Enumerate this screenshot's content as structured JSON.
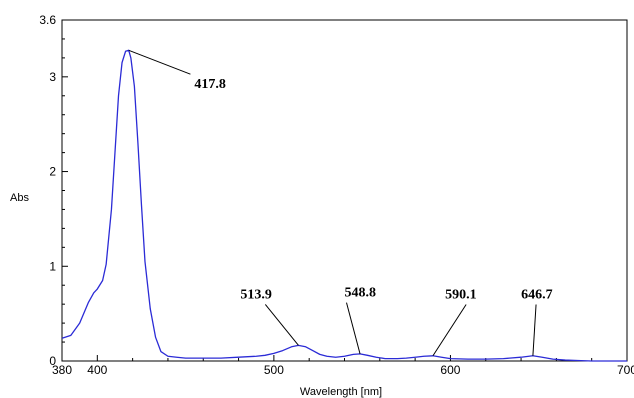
{
  "chart_data": {
    "type": "line",
    "title": "",
    "xlabel": "Wavelength [nm]",
    "ylabel": "Abs",
    "xlim": [
      380,
      700
    ],
    "ylim": [
      0,
      3.6
    ],
    "xticks": [
      {
        "value": 380,
        "label": "380"
      },
      {
        "value": 400,
        "label": "400"
      },
      {
        "value": 500,
        "label": "500"
      },
      {
        "value": 600,
        "label": "600"
      },
      {
        "value": 700,
        "label": "700"
      }
    ],
    "yticks": [
      {
        "value": 0,
        "label": "0"
      },
      {
        "value": 1,
        "label": "1"
      },
      {
        "value": 2,
        "label": "2"
      },
      {
        "value": 3,
        "label": "3"
      },
      {
        "value": 3.6,
        "label": "3.6"
      }
    ],
    "grid": false,
    "line_color": "#2b2bd6",
    "series": [
      {
        "x": [
          380,
          385,
          390,
          395,
          398,
          400,
          403,
          405,
          408,
          410,
          412,
          414,
          416,
          417.8,
          419,
          421,
          423,
          425,
          427,
          430,
          433,
          436,
          440,
          445,
          450,
          460,
          470,
          480,
          490,
          495,
          500,
          505,
          510,
          513.9,
          518,
          522,
          526,
          530,
          535,
          540,
          545,
          548.8,
          553,
          558,
          563,
          570,
          575,
          580,
          585,
          590.1,
          595,
          600,
          610,
          620,
          630,
          640,
          646.7,
          652,
          658,
          665,
          672,
          680,
          690,
          700
        ],
        "y": [
          0.24,
          0.27,
          0.4,
          0.62,
          0.72,
          0.76,
          0.85,
          1.02,
          1.6,
          2.2,
          2.8,
          3.15,
          3.27,
          3.28,
          3.2,
          2.9,
          2.3,
          1.65,
          1.05,
          0.55,
          0.25,
          0.1,
          0.05,
          0.04,
          0.03,
          0.03,
          0.03,
          0.04,
          0.05,
          0.06,
          0.08,
          0.11,
          0.15,
          0.165,
          0.15,
          0.11,
          0.07,
          0.05,
          0.04,
          0.05,
          0.07,
          0.075,
          0.06,
          0.04,
          0.025,
          0.025,
          0.03,
          0.04,
          0.05,
          0.055,
          0.04,
          0.025,
          0.02,
          0.02,
          0.025,
          0.04,
          0.055,
          0.04,
          0.02,
          0.01,
          0.005,
          0.0,
          0.0,
          0.0
        ]
      }
    ],
    "annotations": [
      {
        "text": "417.8",
        "x": 417.8,
        "y": 3.28,
        "label_x": 455,
        "label_y": 2.88
      },
      {
        "text": "513.9",
        "x": 513.9,
        "y": 0.165,
        "label_x": 481,
        "label_y": 0.66
      },
      {
        "text": "548.8",
        "x": 548.8,
        "y": 0.075,
        "label_x": 540,
        "label_y": 0.68
      },
      {
        "text": "590.1",
        "x": 590.1,
        "y": 0.055,
        "label_x": 597,
        "label_y": 0.66
      },
      {
        "text": "646.7",
        "x": 646.7,
        "y": 0.055,
        "label_x": 640,
        "label_y": 0.66
      }
    ]
  }
}
